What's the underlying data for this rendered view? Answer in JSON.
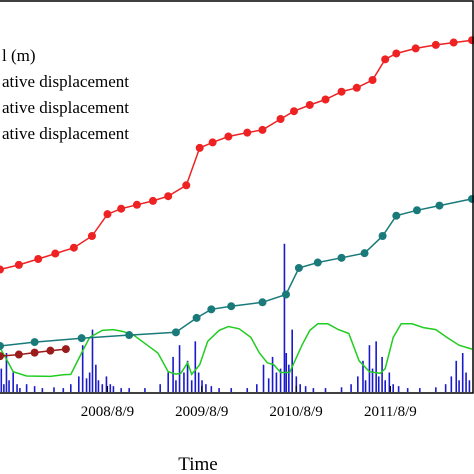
{
  "chart_data": {
    "type": "line",
    "xlabel": "Time",
    "x_range": [
      "2007-06-20",
      "2012-06-20"
    ],
    "x_ticks": [
      "2008/8/9",
      "2009/8/9",
      "2010/8/9",
      "2011/8/9"
    ],
    "x_tick_dates": [
      "2008-08-09",
      "2009-08-09",
      "2010-08-09",
      "2011-08-09"
    ],
    "ylim": [
      0,
      1
    ],
    "grid": false,
    "legend_position": "top-left",
    "legend": [
      {
        "text": "l (m)",
        "color": "#22cc22"
      },
      {
        "text": "ative displacement",
        "color": "#ee2222"
      },
      {
        "text": "ative displacement",
        "color": "#1a7a7a"
      },
      {
        "text": "ative displacement",
        "color": "#9b1a1a"
      }
    ],
    "colors": {
      "red": "#ee2222",
      "teal": "#1a7a7a",
      "darkred": "#9b1a1a",
      "green": "#22cc22",
      "blue": "#1a1acc"
    },
    "series": [
      {
        "color_key": "red",
        "marker": "circle",
        "points": [
          [
            "2007-06-20",
            0.314
          ],
          [
            "2007-09-01",
            0.326
          ],
          [
            "2007-11-15",
            0.341
          ],
          [
            "2008-01-20",
            0.355
          ],
          [
            "2008-04-01",
            0.37
          ],
          [
            "2008-06-10",
            0.4
          ],
          [
            "2008-08-09",
            0.456
          ],
          [
            "2008-10-01",
            0.47
          ],
          [
            "2008-12-01",
            0.48
          ],
          [
            "2009-02-01",
            0.49
          ],
          [
            "2009-04-01",
            0.502
          ],
          [
            "2009-06-10",
            0.53
          ],
          [
            "2009-08-01",
            0.626
          ],
          [
            "2009-09-20",
            0.64
          ],
          [
            "2009-11-20",
            0.655
          ],
          [
            "2010-02-01",
            0.665
          ],
          [
            "2010-04-01",
            0.672
          ],
          [
            "2010-06-10",
            0.7
          ],
          [
            "2010-08-01",
            0.72
          ],
          [
            "2010-10-01",
            0.736
          ],
          [
            "2010-12-01",
            0.75
          ],
          [
            "2011-02-01",
            0.77
          ],
          [
            "2011-04-01",
            0.78
          ],
          [
            "2011-06-01",
            0.8
          ],
          [
            "2011-07-20",
            0.853
          ],
          [
            "2011-09-01",
            0.868
          ],
          [
            "2011-11-15",
            0.881
          ],
          [
            "2012-02-01",
            0.89
          ],
          [
            "2012-04-10",
            0.896
          ],
          [
            "2012-06-20",
            0.902
          ]
        ]
      },
      {
        "color_key": "teal",
        "marker": "circle",
        "points": [
          [
            "2007-06-20",
            0.118
          ],
          [
            "2007-11-01",
            0.128
          ],
          [
            "2008-05-01",
            0.138
          ],
          [
            "2008-11-01",
            0.146
          ],
          [
            "2009-05-01",
            0.153
          ],
          [
            "2009-07-20",
            0.19
          ],
          [
            "2009-09-15",
            0.212
          ],
          [
            "2009-12-01",
            0.22
          ],
          [
            "2010-04-01",
            0.23
          ],
          [
            "2010-07-01",
            0.25
          ],
          [
            "2010-08-20",
            0.318
          ],
          [
            "2010-11-01",
            0.332
          ],
          [
            "2011-02-01",
            0.344
          ],
          [
            "2011-05-01",
            0.356
          ],
          [
            "2011-07-10",
            0.4
          ],
          [
            "2011-09-01",
            0.452
          ],
          [
            "2011-11-20",
            0.466
          ],
          [
            "2012-02-15",
            0.478
          ],
          [
            "2012-06-20",
            0.495
          ]
        ]
      },
      {
        "color_key": "darkred",
        "marker": "circle",
        "points": [
          [
            "2007-06-20",
            0.092
          ],
          [
            "2007-09-01",
            0.096
          ],
          [
            "2007-11-01",
            0.101
          ],
          [
            "2008-01-01",
            0.106
          ],
          [
            "2008-03-01",
            0.11
          ]
        ]
      },
      {
        "color_key": "green",
        "marker": "none",
        "points": [
          [
            "2007-06-20",
            0.113
          ],
          [
            "2007-07-10",
            0.09
          ],
          [
            "2007-08-10",
            0.052
          ],
          [
            "2007-10-01",
            0.041
          ],
          [
            "2008-01-01",
            0.04
          ],
          [
            "2008-02-20",
            0.044
          ],
          [
            "2008-03-20",
            0.045
          ],
          [
            "2008-05-01",
            0.1
          ],
          [
            "2008-06-01",
            0.14
          ],
          [
            "2008-07-20",
            0.158
          ],
          [
            "2008-09-01",
            0.16
          ],
          [
            "2008-10-10",
            0.155
          ],
          [
            "2008-11-20",
            0.145
          ],
          [
            "2009-01-10",
            0.12
          ],
          [
            "2009-02-20",
            0.1
          ],
          [
            "2009-04-01",
            0.052
          ],
          [
            "2009-05-01",
            0.046
          ],
          [
            "2009-05-20",
            0.048
          ],
          [
            "2009-06-15",
            0.075
          ],
          [
            "2009-07-01",
            0.045
          ],
          [
            "2009-08-01",
            0.07
          ],
          [
            "2009-09-01",
            0.13
          ],
          [
            "2009-10-15",
            0.158
          ],
          [
            "2009-11-20",
            0.168
          ],
          [
            "2010-01-01",
            0.162
          ],
          [
            "2010-02-15",
            0.14
          ],
          [
            "2010-03-20",
            0.1
          ],
          [
            "2010-04-20",
            0.075
          ],
          [
            "2010-05-15",
            0.07
          ],
          [
            "2010-06-10",
            0.05
          ],
          [
            "2010-07-15",
            0.05
          ],
          [
            "2010-09-01",
            0.12
          ],
          [
            "2010-10-01",
            0.158
          ],
          [
            "2010-11-01",
            0.175
          ],
          [
            "2010-12-10",
            0.175
          ],
          [
            "2011-01-20",
            0.16
          ],
          [
            "2011-03-01",
            0.15
          ],
          [
            "2011-04-10",
            0.08
          ],
          [
            "2011-05-20",
            0.052
          ],
          [
            "2011-07-01",
            0.048
          ],
          [
            "2011-07-20",
            0.06
          ],
          [
            "2011-08-20",
            0.14
          ],
          [
            "2011-09-20",
            0.175
          ],
          [
            "2011-11-01",
            0.175
          ],
          [
            "2011-12-15",
            0.165
          ],
          [
            "2012-02-01",
            0.16
          ],
          [
            "2012-03-15",
            0.14
          ],
          [
            "2012-05-01",
            0.12
          ],
          [
            "2012-06-20",
            0.11
          ]
        ]
      },
      {
        "color_key": "blue",
        "marker": "bar",
        "points": [
          [
            "2007-06-25",
            0.06
          ],
          [
            "2007-07-05",
            0.02
          ],
          [
            "2007-07-15",
            0.1
          ],
          [
            "2007-07-25",
            0.03
          ],
          [
            "2007-08-10",
            0.05
          ],
          [
            "2007-08-25",
            0.02
          ],
          [
            "2007-09-05",
            0.01
          ],
          [
            "2007-10-01",
            0.02
          ],
          [
            "2007-11-01",
            0.015
          ],
          [
            "2007-12-01",
            0.01
          ],
          [
            "2008-01-15",
            0.012
          ],
          [
            "2008-02-20",
            0.01
          ],
          [
            "2008-03-20",
            0.02
          ],
          [
            "2008-04-20",
            0.04
          ],
          [
            "2008-05-05",
            0.12
          ],
          [
            "2008-05-20",
            0.035
          ],
          [
            "2008-06-01",
            0.05
          ],
          [
            "2008-06-12",
            0.16
          ],
          [
            "2008-06-25",
            0.07
          ],
          [
            "2008-07-05",
            0.03
          ],
          [
            "2008-07-20",
            0.02
          ],
          [
            "2008-08-05",
            0.04
          ],
          [
            "2008-08-20",
            0.02
          ],
          [
            "2008-09-01",
            0.015
          ],
          [
            "2008-10-01",
            0.01
          ],
          [
            "2008-11-01",
            0.01
          ],
          [
            "2009-01-01",
            0.01
          ],
          [
            "2009-03-01",
            0.02
          ],
          [
            "2009-04-01",
            0.05
          ],
          [
            "2009-04-20",
            0.09
          ],
          [
            "2009-05-01",
            0.03
          ],
          [
            "2009-05-15",
            0.12
          ],
          [
            "2009-06-01",
            0.05
          ],
          [
            "2009-06-15",
            0.08
          ],
          [
            "2009-07-01",
            0.03
          ],
          [
            "2009-07-15",
            0.13
          ],
          [
            "2009-07-28",
            0.05
          ],
          [
            "2009-08-10",
            0.03
          ],
          [
            "2009-08-25",
            0.02
          ],
          [
            "2009-09-15",
            0.015
          ],
          [
            "2009-10-15",
            0.01
          ],
          [
            "2009-12-01",
            0.01
          ],
          [
            "2010-02-01",
            0.01
          ],
          [
            "2010-03-10",
            0.02
          ],
          [
            "2010-04-05",
            0.07
          ],
          [
            "2010-04-25",
            0.035
          ],
          [
            "2010-05-10",
            0.09
          ],
          [
            "2010-05-25",
            0.05
          ],
          [
            "2010-06-10",
            0.06
          ],
          [
            "2010-06-25",
            0.38
          ],
          [
            "2010-07-02",
            0.1
          ],
          [
            "2010-07-12",
            0.07
          ],
          [
            "2010-07-25",
            0.16
          ],
          [
            "2010-08-10",
            0.04
          ],
          [
            "2010-08-25",
            0.02
          ],
          [
            "2010-09-15",
            0.015
          ],
          [
            "2010-10-15",
            0.01
          ],
          [
            "2010-12-01",
            0.01
          ],
          [
            "2011-02-01",
            0.012
          ],
          [
            "2011-03-10",
            0.02
          ],
          [
            "2011-04-05",
            0.04
          ],
          [
            "2011-04-25",
            0.08
          ],
          [
            "2011-05-05",
            0.03
          ],
          [
            "2011-05-20",
            0.12
          ],
          [
            "2011-06-01",
            0.06
          ],
          [
            "2011-06-15",
            0.13
          ],
          [
            "2011-06-25",
            0.04
          ],
          [
            "2011-07-08",
            0.09
          ],
          [
            "2011-07-20",
            0.03
          ],
          [
            "2011-08-05",
            0.05
          ],
          [
            "2011-08-20",
            0.02
          ],
          [
            "2011-09-10",
            0.015
          ],
          [
            "2011-10-15",
            0.01
          ],
          [
            "2011-12-01",
            0.01
          ],
          [
            "2012-02-01",
            0.012
          ],
          [
            "2012-03-10",
            0.02
          ],
          [
            "2012-04-01",
            0.04
          ],
          [
            "2012-04-20",
            0.08
          ],
          [
            "2012-05-01",
            0.03
          ],
          [
            "2012-05-15",
            0.1
          ],
          [
            "2012-05-28",
            0.05
          ],
          [
            "2012-06-10",
            0.03
          ]
        ]
      }
    ]
  }
}
